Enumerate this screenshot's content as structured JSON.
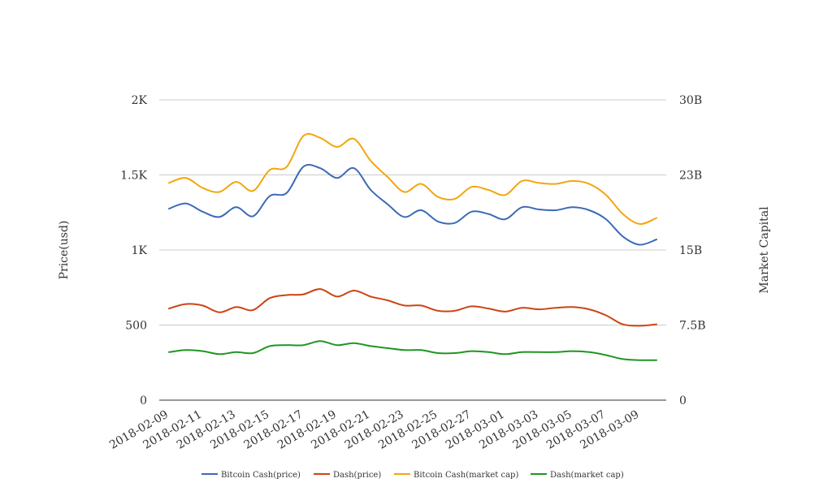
{
  "chart_data": {
    "type": "line",
    "title": "",
    "x": [
      "2018-02-09",
      "2018-02-10",
      "2018-02-11",
      "2018-02-12",
      "2018-02-13",
      "2018-02-14",
      "2018-02-15",
      "2018-02-16",
      "2018-02-17",
      "2018-02-18",
      "2018-02-19",
      "2018-02-20",
      "2018-02-21",
      "2018-02-22",
      "2018-02-23",
      "2018-02-24",
      "2018-02-25",
      "2018-02-26",
      "2018-02-27",
      "2018-02-28",
      "2018-03-01",
      "2018-03-02",
      "2018-03-03",
      "2018-03-04",
      "2018-03-05",
      "2018-03-06",
      "2018-03-07",
      "2018-03-08",
      "2018-03-09",
      "2018-03-10"
    ],
    "x_tick_labels": [
      "2018-02-09",
      "2018-02-11",
      "2018-02-13",
      "2018-02-15",
      "2018-02-17",
      "2018-02-19",
      "2018-02-21",
      "2018-02-23",
      "2018-02-25",
      "2018-02-27",
      "2018-03-01",
      "2018-03-03",
      "2018-03-05",
      "2018-03-07",
      "2018-03-09"
    ],
    "y_left": {
      "label": "Price(usd)",
      "range": [
        0,
        2000
      ],
      "ticks": [
        0,
        500,
        1000,
        1500,
        2000
      ],
      "tick_labels": [
        "0",
        "500",
        "1K",
        "1.5K",
        "2K"
      ]
    },
    "y_right": {
      "label": "Market Capital",
      "range": [
        0,
        30000000000
      ],
      "ticks": [
        0,
        7500000000,
        15000000000,
        22500000000,
        30000000000
      ],
      "tick_labels": [
        "0",
        "7.5B",
        "15B",
        "23B",
        "30B"
      ]
    },
    "grid": true,
    "legend_position": "bottom",
    "series": [
      {
        "name": "Bitcoin Cash(price)",
        "axis": "left",
        "color": "#3d6ab6",
        "values": [
          1275,
          1310,
          1255,
          1220,
          1285,
          1225,
          1360,
          1380,
          1555,
          1545,
          1480,
          1545,
          1400,
          1305,
          1220,
          1265,
          1190,
          1180,
          1255,
          1240,
          1205,
          1285,
          1270,
          1265,
          1285,
          1265,
          1205,
          1090,
          1035,
          1070
        ]
      },
      {
        "name": "Dash(price)",
        "axis": "left",
        "color": "#cc4412",
        "values": [
          610,
          640,
          630,
          585,
          620,
          600,
          680,
          700,
          705,
          740,
          690,
          730,
          690,
          665,
          630,
          630,
          595,
          595,
          625,
          610,
          590,
          615,
          605,
          615,
          620,
          605,
          565,
          505,
          495,
          505
        ]
      },
      {
        "name": "Bitcoin Cash(market cap)",
        "axis": "right",
        "color": "#f2a60f",
        "values": [
          21700000000,
          22200000000,
          21200000000,
          20800000000,
          21800000000,
          20900000000,
          23000000000,
          23300000000,
          26400000000,
          26200000000,
          25300000000,
          26100000000,
          23900000000,
          22300000000,
          20800000000,
          21600000000,
          20300000000,
          20100000000,
          21300000000,
          21000000000,
          20500000000,
          21900000000,
          21700000000,
          21600000000,
          21900000000,
          21600000000,
          20500000000,
          18600000000,
          17600000000,
          18200000000
        ]
      },
      {
        "name": "Dash(market cap)",
        "axis": "right",
        "color": "#1f9622",
        "values": [
          4800000000,
          5000000000,
          4900000000,
          4600000000,
          4800000000,
          4700000000,
          5400000000,
          5500000000,
          5500000000,
          5900000000,
          5500000000,
          5700000000,
          5400000000,
          5200000000,
          5000000000,
          5000000000,
          4700000000,
          4700000000,
          4900000000,
          4800000000,
          4600000000,
          4800000000,
          4800000000,
          4800000000,
          4900000000,
          4800000000,
          4500000000,
          4100000000,
          4000000000,
          4000000000
        ]
      }
    ]
  }
}
